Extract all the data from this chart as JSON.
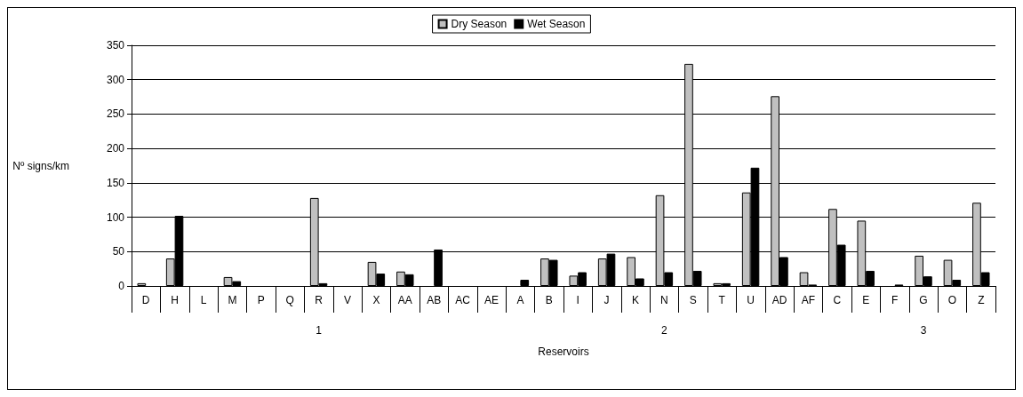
{
  "chart_data": {
    "type": "bar",
    "categories": [
      "D",
      "H",
      "L",
      "M",
      "P",
      "Q",
      "R",
      "V",
      "X",
      "AA",
      "AB",
      "AC",
      "AE",
      "A",
      "B",
      "I",
      "J",
      "K",
      "N",
      "S",
      "T",
      "U",
      "AD",
      "AF",
      "C",
      "E",
      "F",
      "G",
      "O",
      "Z"
    ],
    "series": [
      {
        "name": "Dry Season",
        "color": "#c0c0c0",
        "values": [
          4,
          40,
          0,
          13,
          0,
          0,
          128,
          0,
          35,
          21,
          0,
          0,
          0,
          0,
          40,
          15,
          40,
          42,
          132,
          323,
          4,
          136,
          276,
          20,
          112,
          95,
          0,
          44,
          38,
          121
        ]
      },
      {
        "name": "Wet Season",
        "color": "#000000",
        "values": [
          0,
          102,
          0,
          7,
          0,
          0,
          4,
          0,
          18,
          17,
          53,
          0,
          0,
          9,
          38,
          20,
          47,
          11,
          20,
          22,
          4,
          172,
          42,
          2,
          60,
          22,
          2,
          14,
          9,
          20
        ]
      }
    ],
    "xlabel": "Reservoirs",
    "ylabel": "Nº signs/km",
    "annotations": [
      "1",
      "2",
      "3"
    ],
    "ylim": [
      0,
      350
    ],
    "yticks": [
      0,
      50,
      100,
      150,
      200,
      250,
      300,
      350
    ],
    "grid": "y",
    "legend": "top"
  }
}
